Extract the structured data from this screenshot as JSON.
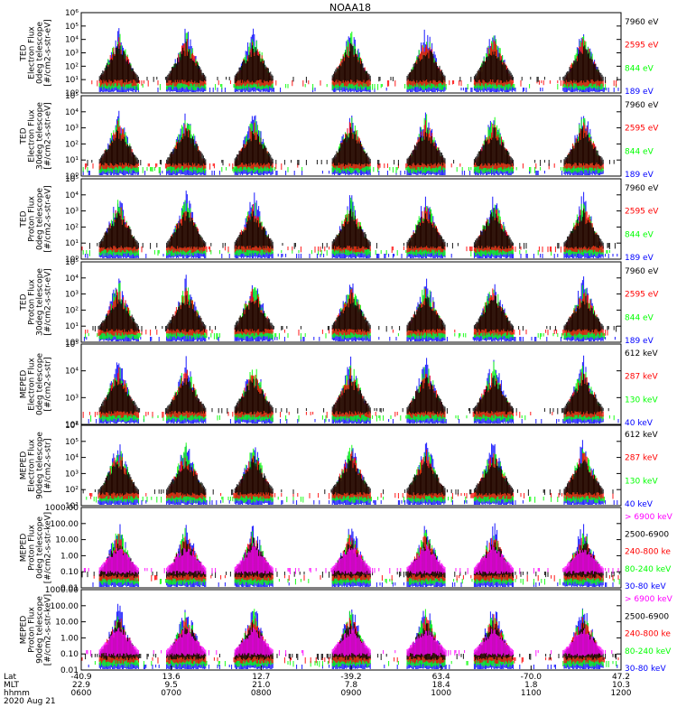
{
  "title": "NOAA18",
  "colors": {
    "blue": "#0000ff",
    "red": "#ff0000",
    "green": "#00ff00",
    "black": "#000000",
    "magenta": "#ff00ff"
  },
  "chart_data": {
    "type": "multi-panel-timeseries",
    "title": "NOAA18",
    "x_axis": {
      "rows": [
        {
          "label": "Lat",
          "values": [
            "-40.9",
            "13.6",
            "12.7",
            "-39.2",
            "63.4",
            "-70.0",
            "47.2"
          ]
        },
        {
          "label": "MLT",
          "values": [
            "22.9",
            "9.5",
            "21.0",
            "7.8",
            "18.4",
            "1.8",
            "10.3"
          ]
        },
        {
          "label": "hhmm",
          "values": [
            "0600",
            "0700",
            "0800",
            "0900",
            "1000",
            "1100",
            "1200"
          ]
        }
      ],
      "date": "2020 Aug 21",
      "time_range_hours": [
        6,
        12
      ]
    },
    "panels": [
      {
        "ylabel": [
          "TED",
          "Electron Flux",
          "0deg telescope",
          "[#/cm2-s-str-eV]"
        ],
        "y_ticks": [
          "10⁰",
          "10¹",
          "10²",
          "10³",
          "10⁴",
          "10⁵",
          "10⁶"
        ],
        "channels": [
          {
            "label": "7960 eV",
            "color": "black"
          },
          {
            "label": "2595 eV",
            "color": "red"
          },
          {
            "label": "844 eV",
            "color": "green"
          },
          {
            "label": "189 eV",
            "color": "blue"
          }
        ]
      },
      {
        "ylabel": [
          "TED",
          "Electron Flux",
          "30deg telescope",
          "[#/cm2-s-str-eV]"
        ],
        "y_ticks": [
          "10⁰",
          "10¹",
          "10²",
          "10³",
          "10⁴",
          "10⁵"
        ],
        "channels": [
          {
            "label": "7960 eV",
            "color": "black"
          },
          {
            "label": "2595 eV",
            "color": "red"
          },
          {
            "label": "844 eV",
            "color": "green"
          },
          {
            "label": "189 eV",
            "color": "blue"
          }
        ]
      },
      {
        "ylabel": [
          "TED",
          "Proton Flux",
          "0deg telescope",
          "[#/cm2-s-str-eV]"
        ],
        "y_ticks": [
          "10⁰",
          "10¹",
          "10²",
          "10³",
          "10⁴",
          "10⁵"
        ],
        "channels": [
          {
            "label": "7960 eV",
            "color": "black"
          },
          {
            "label": "2595 eV",
            "color": "red"
          },
          {
            "label": "844 eV",
            "color": "green"
          },
          {
            "label": "189 eV",
            "color": "blue"
          }
        ]
      },
      {
        "ylabel": [
          "TED",
          "Proton Flux",
          "30deg telescope",
          "[#/cm2-s-str-eV]"
        ],
        "y_ticks": [
          "10⁰",
          "10¹",
          "10²",
          "10³",
          "10⁴",
          "10⁵"
        ],
        "channels": [
          {
            "label": "7960 eV",
            "color": "black"
          },
          {
            "label": "2595 eV",
            "color": "red"
          },
          {
            "label": "844 eV",
            "color": "green"
          },
          {
            "label": "189 eV",
            "color": "blue"
          }
        ]
      },
      {
        "ylabel": [
          "MEPED",
          "Electron Flux",
          "0deg telescope",
          "[#/cm2-s-str]"
        ],
        "y_ticks": [
          "10²",
          "10³",
          "10⁴",
          "10⁵"
        ],
        "channels": [
          {
            "label": "612 keV",
            "color": "black"
          },
          {
            "label": "287 keV",
            "color": "red"
          },
          {
            "label": "130 keV",
            "color": "green"
          },
          {
            "label": "40 keV",
            "color": "blue"
          }
        ]
      },
      {
        "ylabel": [
          "MEPED",
          "Electron Flux",
          "90deg telescope",
          "[#/cm2-s-str]"
        ],
        "y_ticks": [
          "10¹",
          "10²",
          "10³",
          "10⁴",
          "10⁵",
          "10⁶"
        ],
        "channels": [
          {
            "label": "612 keV",
            "color": "black"
          },
          {
            "label": "287 keV",
            "color": "red"
          },
          {
            "label": "130 keV",
            "color": "green"
          },
          {
            "label": "40 keV",
            "color": "blue"
          }
        ]
      },
      {
        "ylabel": [
          "MEPED",
          "Proton Flux",
          "0deg telescope",
          "[#/cm2-s-str-keV]"
        ],
        "y_ticks": [
          "0.01",
          "0.10",
          "1.00",
          "10.00",
          "100.00",
          "1000.00"
        ],
        "channels": [
          {
            "label": "> 6900 keV",
            "color": "magenta"
          },
          {
            "label": "2500-6900",
            "color": "black"
          },
          {
            "label": "240-800 ke",
            "color": "red"
          },
          {
            "label": "80-240 keV",
            "color": "green"
          },
          {
            "label": "30-80 keV",
            "color": "blue"
          }
        ]
      },
      {
        "ylabel": [
          "MEPED",
          "Proton Flux",
          "90deg telescope",
          "[#/cm2-s-str-keV]"
        ],
        "y_ticks": [
          "0.01",
          "0.10",
          "1.00",
          "10.00",
          "100.00",
          "1000.00"
        ],
        "channels": [
          {
            "label": "> 6900 keV",
            "color": "magenta"
          },
          {
            "label": "2500-6900",
            "color": "black"
          },
          {
            "label": "240-800 ke",
            "color": "red"
          },
          {
            "label": "80-240 keV",
            "color": "green"
          },
          {
            "label": "30-80 keV",
            "color": "blue"
          }
        ]
      }
    ],
    "passes_hhmm_center": [
      "0625",
      "0710",
      "0755",
      "0900",
      "0950",
      "1035",
      "1135"
    ]
  }
}
